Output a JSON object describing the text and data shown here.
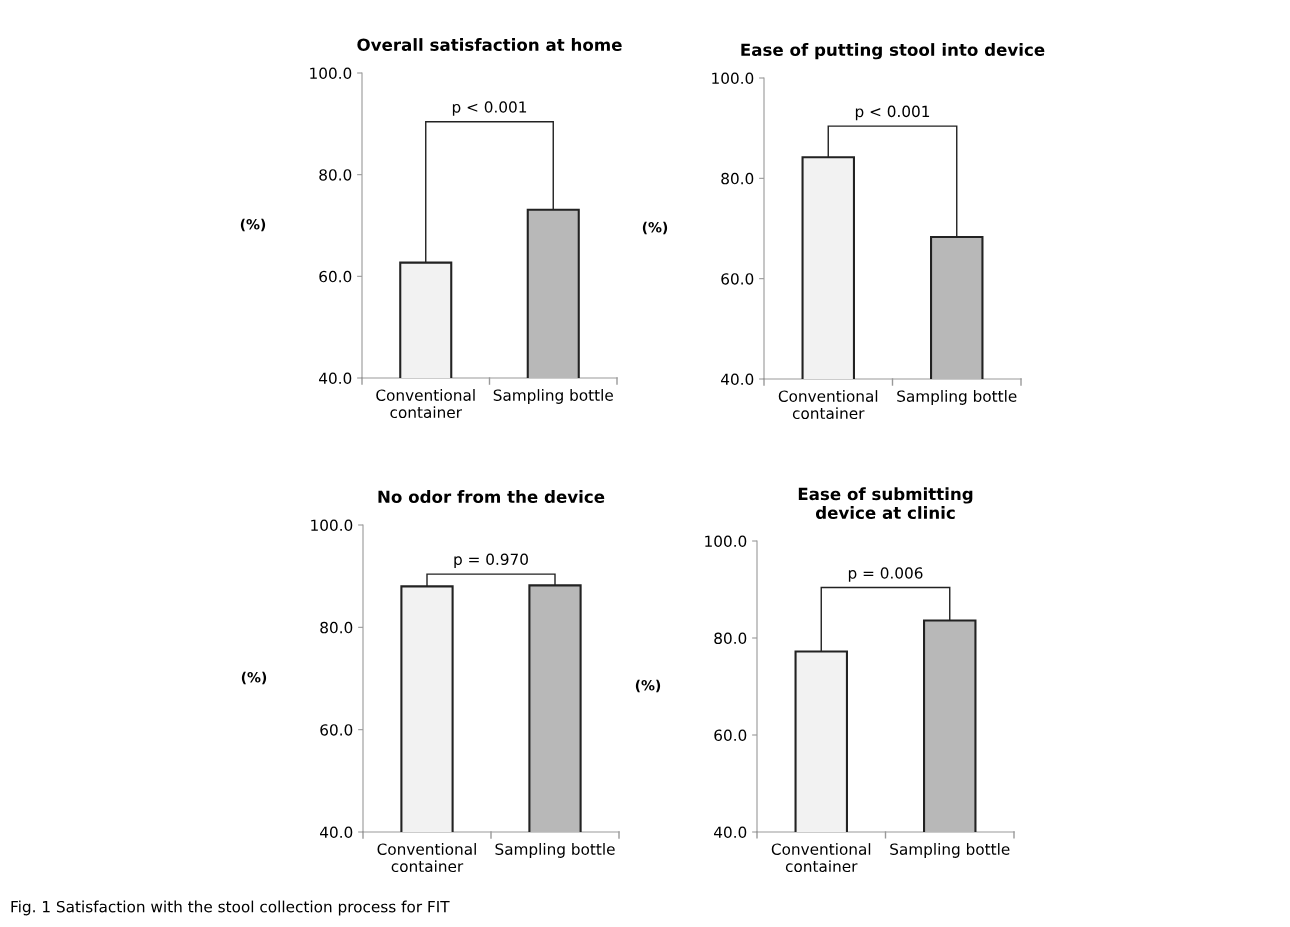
{
  "chart_data": [
    {
      "type": "bar",
      "title": "Overall satisfaction at home",
      "ylabel": "(%)",
      "categories": [
        "Conventional container",
        "Sampling bottle"
      ],
      "values": [
        62.7,
        73.1
      ],
      "colors": [
        "#f2f2f2",
        "#b8b8b8"
      ],
      "ylim": [
        40,
        100
      ],
      "yticks": [
        {
          "value": 40,
          "label": "40.0"
        },
        {
          "value": 60,
          "label": "60.0"
        },
        {
          "value": 80,
          "label": "80.0"
        },
        {
          "value": 100,
          "label": "100.0"
        }
      ],
      "grid": false,
      "legend": false,
      "annotations": [
        "p < 0.001"
      ]
    },
    {
      "type": "bar",
      "title": "Ease of putting stool into device",
      "ylabel": "(%)",
      "categories": [
        "Conventional container",
        "Sampling bottle"
      ],
      "values": [
        84.2,
        68.3
      ],
      "colors": [
        "#f2f2f2",
        "#b8b8b8"
      ],
      "ylim": [
        40,
        100
      ],
      "yticks": [
        {
          "value": 40,
          "label": "40.0"
        },
        {
          "value": 60,
          "label": "60.0"
        },
        {
          "value": 80,
          "label": "80.0"
        },
        {
          "value": 100,
          "label": "100.0"
        }
      ],
      "grid": false,
      "legend": false,
      "annotations": [
        "p < 0.001"
      ]
    },
    {
      "type": "bar",
      "title": "No odor from the device",
      "ylabel": "(%)",
      "categories": [
        "Conventional container",
        "Sampling bottle"
      ],
      "values": [
        88.0,
        88.2
      ],
      "colors": [
        "#f2f2f2",
        "#b8b8b8"
      ],
      "ylim": [
        40,
        100
      ],
      "yticks": [
        {
          "value": 40,
          "label": "40.0"
        },
        {
          "value": 60,
          "label": "60.0"
        },
        {
          "value": 80,
          "label": "80.0"
        },
        {
          "value": 100,
          "label": "100.0"
        }
      ],
      "grid": false,
      "legend": false,
      "annotations": [
        "p = 0.970"
      ]
    },
    {
      "type": "bar",
      "title": "Ease of submitting device at clinic",
      "ylabel": "(%)",
      "categories": [
        "Conventional container",
        "Sampling bottle"
      ],
      "values": [
        77.2,
        83.6
      ],
      "colors": [
        "#f2f2f2",
        "#b8b8b8"
      ],
      "ylim": [
        40,
        100
      ],
      "yticks": [
        {
          "value": 40,
          "label": "40.0"
        },
        {
          "value": 60,
          "label": "60.0"
        },
        {
          "value": 80,
          "label": "80.0"
        },
        {
          "value": 100,
          "label": "100.0"
        }
      ],
      "grid": false,
      "legend": false,
      "annotations": [
        "p = 0.006",
        "Fig. 1 Satisfaction with the stool collection process for FIT"
      ]
    }
  ]
}
